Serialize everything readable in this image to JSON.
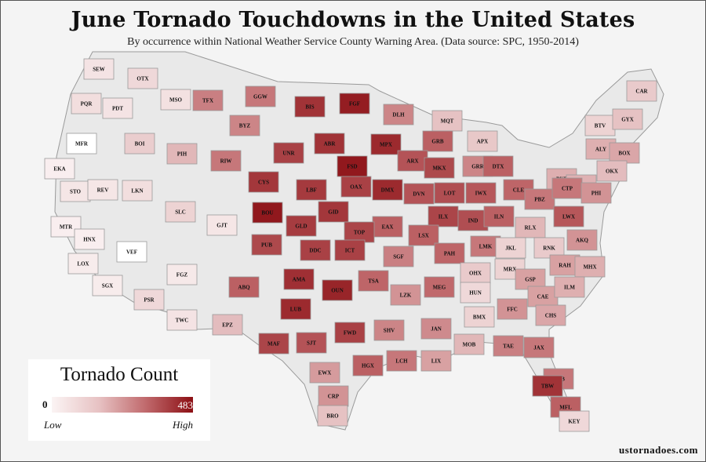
{
  "title": "June Tornado Touchdowns in the United States",
  "subtitle": "By occurrence within National Weather Service County Warning Area. (Data source: SPC, 1950-2014)",
  "legend": {
    "title": "Tornado Count",
    "min": "0",
    "max": "483",
    "low_label": "Low",
    "high_label": "High"
  },
  "credit": "ustornadoes.com",
  "colors": {
    "scale_low": "#fbf4f4",
    "scale_mid": "#c0696c",
    "scale_high": "#8c0f14",
    "background": "#f4f4f4"
  },
  "cwas": [
    {
      "code": "SEW",
      "level": 0.06
    },
    {
      "code": "OTX",
      "level": 0.1
    },
    {
      "code": "PQR",
      "level": 0.08
    },
    {
      "code": "PDT",
      "level": 0.06
    },
    {
      "code": "MSO",
      "level": 0.07
    },
    {
      "code": "TFX",
      "level": 0.42
    },
    {
      "code": "GGW",
      "level": 0.45
    },
    {
      "code": "BIS",
      "level": 0.8
    },
    {
      "code": "FGF",
      "level": 0.92
    },
    {
      "code": "DLH",
      "level": 0.4
    },
    {
      "code": "MQT",
      "level": 0.18
    },
    {
      "code": "CAR",
      "level": 0.15
    },
    {
      "code": "MFR",
      "level": 0.0
    },
    {
      "code": "BOI",
      "level": 0.14
    },
    {
      "code": "BYZ",
      "level": 0.4
    },
    {
      "code": "UNR",
      "level": 0.72
    },
    {
      "code": "ABR",
      "level": 0.8
    },
    {
      "code": "MPX",
      "level": 0.85
    },
    {
      "code": "GRB",
      "level": 0.55
    },
    {
      "code": "APX",
      "level": 0.16
    },
    {
      "code": "BTV",
      "level": 0.12
    },
    {
      "code": "GYX",
      "level": 0.18
    },
    {
      "code": "EKA",
      "level": 0.02
    },
    {
      "code": "PIH",
      "level": 0.22
    },
    {
      "code": "RIW",
      "level": 0.45
    },
    {
      "code": "FSD",
      "level": 0.95
    },
    {
      "code": "ARX",
      "level": 0.62
    },
    {
      "code": "MKX",
      "level": 0.68
    },
    {
      "code": "GRR",
      "level": 0.4
    },
    {
      "code": "DTX",
      "level": 0.55
    },
    {
      "code": "BUF",
      "level": 0.25
    },
    {
      "code": "ALY",
      "level": 0.25
    },
    {
      "code": "BOX",
      "level": 0.28
    },
    {
      "code": "STO",
      "level": 0.05
    },
    {
      "code": "REV",
      "level": 0.05
    },
    {
      "code": "LKN",
      "level": 0.08
    },
    {
      "code": "CYS",
      "level": 0.78
    },
    {
      "code": "LBF",
      "level": 0.76
    },
    {
      "code": "OAX",
      "level": 0.72
    },
    {
      "code": "DMX",
      "level": 0.85
    },
    {
      "code": "DVN",
      "level": 0.62
    },
    {
      "code": "LOT",
      "level": 0.65
    },
    {
      "code": "IWX",
      "level": 0.6
    },
    {
      "code": "CLE",
      "level": 0.52
    },
    {
      "code": "BGM",
      "level": 0.24
    },
    {
      "code": "OKX",
      "level": 0.2
    },
    {
      "code": "SLC",
      "level": 0.12
    },
    {
      "code": "GJT",
      "level": 0.05
    },
    {
      "code": "BOU",
      "level": 0.95
    },
    {
      "code": "GID",
      "level": 0.78
    },
    {
      "code": "EAX",
      "level": 0.55
    },
    {
      "code": "ILX",
      "level": 0.7
    },
    {
      "code": "IND",
      "level": 0.65
    },
    {
      "code": "ILN",
      "level": 0.55
    },
    {
      "code": "PBZ",
      "level": 0.45
    },
    {
      "code": "CTP",
      "level": 0.45
    },
    {
      "code": "PHI",
      "level": 0.35
    },
    {
      "code": "MTR",
      "level": 0.02
    },
    {
      "code": "HNX",
      "level": 0.02
    },
    {
      "code": "VEF",
      "level": 0.0
    },
    {
      "code": "GLD",
      "level": 0.75
    },
    {
      "code": "TOP",
      "level": 0.7
    },
    {
      "code": "LSX",
      "level": 0.55
    },
    {
      "code": "LWX",
      "level": 0.6
    },
    {
      "code": "RLX",
      "level": 0.22
    },
    {
      "code": "AKQ",
      "level": 0.35
    },
    {
      "code": "LOX",
      "level": 0.03
    },
    {
      "code": "PUB",
      "level": 0.68
    },
    {
      "code": "DDC",
      "level": 0.72
    },
    {
      "code": "ICT",
      "level": 0.72
    },
    {
      "code": "SGF",
      "level": 0.42
    },
    {
      "code": "PAH",
      "level": 0.52
    },
    {
      "code": "LMK",
      "level": 0.45
    },
    {
      "code": "JKL",
      "level": 0.12
    },
    {
      "code": "RNK",
      "level": 0.15
    },
    {
      "code": "SGX",
      "level": 0.03
    },
    {
      "code": "FGZ",
      "level": 0.04
    },
    {
      "code": "ABQ",
      "level": 0.55
    },
    {
      "code": "AMA",
      "level": 0.82
    },
    {
      "code": "OUN",
      "level": 0.88
    },
    {
      "code": "TSA",
      "level": 0.52
    },
    {
      "code": "MEG",
      "level": 0.5
    },
    {
      "code": "OHX",
      "level": 0.15
    },
    {
      "code": "MRX",
      "level": 0.12
    },
    {
      "code": "RAH",
      "level": 0.3
    },
    {
      "code": "MHX",
      "level": 0.25
    },
    {
      "code": "PSR",
      "level": 0.1
    },
    {
      "code": "TWC",
      "level": 0.06
    },
    {
      "code": "LUB",
      "level": 0.85
    },
    {
      "code": "LZK",
      "level": 0.35
    },
    {
      "code": "HUN",
      "level": 0.1
    },
    {
      "code": "GSP",
      "level": 0.3
    },
    {
      "code": "CAE",
      "level": 0.3
    },
    {
      "code": "ILM",
      "level": 0.25
    },
    {
      "code": "EPZ",
      "level": 0.2
    },
    {
      "code": "SHV",
      "level": 0.4
    },
    {
      "code": "JAN",
      "level": 0.38
    },
    {
      "code": "BMX",
      "level": 0.12
    },
    {
      "code": "FFC",
      "level": 0.35
    },
    {
      "code": "CHS",
      "level": 0.28
    },
    {
      "code": "MAF",
      "level": 0.7
    },
    {
      "code": "SJT",
      "level": 0.62
    },
    {
      "code": "FWD",
      "level": 0.72
    },
    {
      "code": "MOB",
      "level": 0.22
    },
    {
      "code": "TAE",
      "level": 0.42
    },
    {
      "code": "JAX",
      "level": 0.45
    },
    {
      "code": "LCH",
      "level": 0.45
    },
    {
      "code": "LIX",
      "level": 0.3
    },
    {
      "code": "HGX",
      "level": 0.55
    },
    {
      "code": "EWX",
      "level": 0.32
    },
    {
      "code": "MLB",
      "level": 0.45
    },
    {
      "code": "TBW",
      "level": 0.8
    },
    {
      "code": "CRP",
      "level": 0.35
    },
    {
      "code": "MFL",
      "level": 0.55
    },
    {
      "code": "BRO",
      "level": 0.18
    },
    {
      "code": "KEY",
      "level": 0.1
    }
  ]
}
